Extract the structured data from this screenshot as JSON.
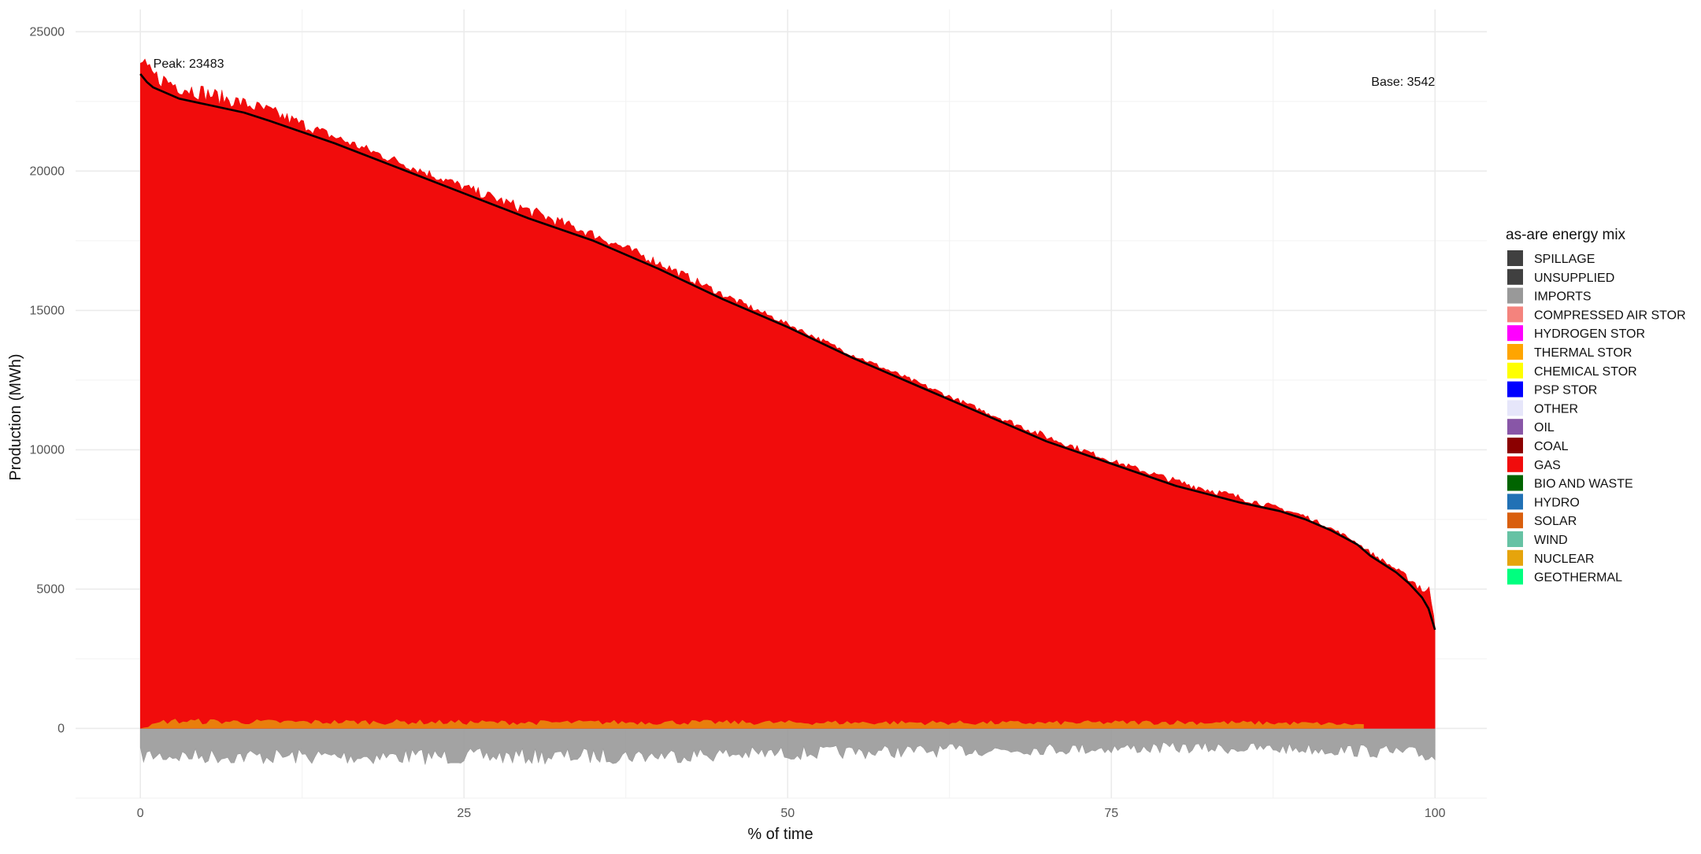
{
  "chart_data": {
    "type": "area",
    "title": "",
    "xlabel": "% of time",
    "ylabel": "Production (MWh)",
    "xlim": [
      -5,
      104
    ],
    "ylim": [
      -2500,
      25800
    ],
    "x_ticks": [
      0,
      25,
      50,
      75,
      100
    ],
    "y_ticks": [
      0,
      5000,
      10000,
      15000,
      20000,
      25000
    ],
    "grid": true,
    "legend": {
      "title": "as-are energy mix",
      "position": "right",
      "entries": [
        {
          "name": "SPILLAGE",
          "color": "#404040"
        },
        {
          "name": "UNSUPPLIED",
          "color": "#404040"
        },
        {
          "name": "IMPORTS",
          "color": "#999999"
        },
        {
          "name": "COMPRESSED AIR STOR",
          "color": "#f4837d"
        },
        {
          "name": "HYDROGEN STOR",
          "color": "#ff00ff"
        },
        {
          "name": "THERMAL STOR",
          "color": "#ffa500"
        },
        {
          "name": "CHEMICAL STOR",
          "color": "#ffff00"
        },
        {
          "name": "PSP STOR",
          "color": "#0000ff"
        },
        {
          "name": "OTHER",
          "color": "#e6e6fa"
        },
        {
          "name": "OIL",
          "color": "#8856a7"
        },
        {
          "name": "COAL",
          "color": "#8b0000"
        },
        {
          "name": "GAS",
          "color": "#f10c0c"
        },
        {
          "name": "BIO AND WASTE",
          "color": "#006400"
        },
        {
          "name": "HYDRO",
          "color": "#2171b5"
        },
        {
          "name": "SOLAR",
          "color": "#d95f0e"
        },
        {
          "name": "WIND",
          "color": "#66c2a4"
        },
        {
          "name": "NUCLEAR",
          "color": "#e6a40c"
        },
        {
          "name": "GEOTHERMAL",
          "color": "#00ff7f"
        }
      ]
    },
    "annotations": [
      {
        "text": "Peak: 23483",
        "x": 1,
        "y": 23850
      },
      {
        "text": "Base: 3542",
        "x": 100,
        "y": 23200
      }
    ],
    "series": [
      {
        "name": "GAS",
        "color": "#f10c0c",
        "x": [
          0,
          0.5,
          1,
          2,
          5,
          10,
          15,
          20,
          25,
          30,
          35,
          40,
          45,
          50,
          55,
          60,
          65,
          70,
          75,
          80,
          85,
          90,
          93,
          95,
          97,
          98,
          99,
          100
        ],
        "y": [
          24300,
          23950,
          23750,
          23550,
          23100,
          22400,
          21400,
          20500,
          19600,
          18800,
          17900,
          16900,
          15700,
          14600,
          13500,
          12500,
          11500,
          10600,
          9700,
          9000,
          8400,
          7700,
          7000,
          6400,
          5800,
          5500,
          5300,
          5150
        ]
      },
      {
        "name": "IMPORTS",
        "color": "#999999",
        "x": [
          0,
          10,
          20,
          30,
          40,
          50,
          60,
          70,
          80,
          90,
          95,
          98,
          100
        ],
        "y": [
          -1250,
          -1300,
          -1300,
          -1300,
          -1250,
          -1150,
          -1050,
          -950,
          -900,
          -950,
          -1050,
          -1150,
          -1300
        ]
      },
      {
        "name": "NUCLEAR",
        "color": "#e6a40c",
        "x": [
          0,
          2,
          10,
          20,
          30,
          40,
          50,
          60,
          70,
          80,
          90,
          94.5
        ],
        "y": [
          0,
          380,
          330,
          330,
          300,
          320,
          300,
          300,
          280,
          320,
          260,
          200
        ]
      },
      {
        "name": "load",
        "color": "#000000",
        "x": [
          0,
          0.5,
          1,
          2,
          3,
          5,
          8,
          10,
          15,
          20,
          25,
          30,
          35,
          40,
          45,
          50,
          55,
          60,
          65,
          70,
          75,
          80,
          85,
          88,
          90,
          92,
          94,
          95,
          96,
          97,
          98,
          99,
          99.5,
          100
        ],
        "y": [
          23483,
          23200,
          23000,
          22800,
          22600,
          22400,
          22100,
          21800,
          21000,
          20100,
          19200,
          18300,
          17500,
          16500,
          15400,
          14400,
          13300,
          12300,
          11300,
          10300,
          9500,
          8700,
          8100,
          7800,
          7500,
          7100,
          6600,
          6200,
          5900,
          5600,
          5200,
          4700,
          4300,
          3542
        ]
      }
    ]
  }
}
